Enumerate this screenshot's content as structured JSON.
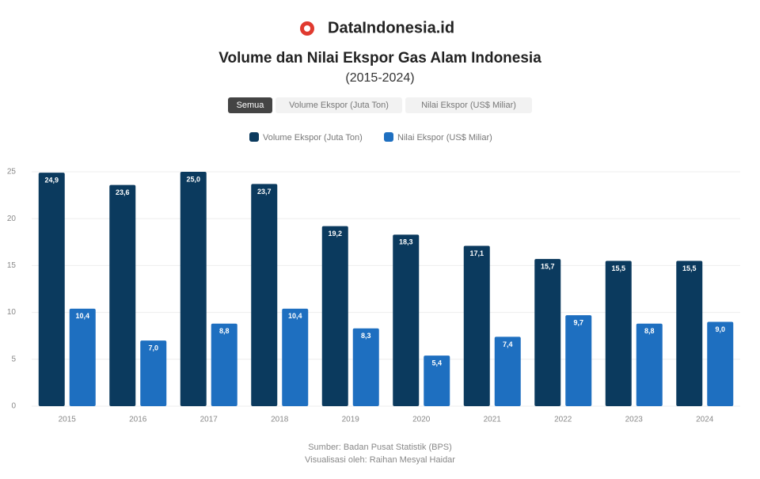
{
  "brand": "DataIndonesia.id",
  "buttons": [
    "Semua",
    "Volume Ekspor (Juta Ton)",
    "Nilai Ekspor (US$ Miliar)"
  ],
  "chart_data": {
    "type": "bar",
    "title": "Volume dan Nilai Ekspor Gas Alam Indonesia",
    "subtitle": "(2015-2024)",
    "categories": [
      "2015",
      "2016",
      "2017",
      "2018",
      "2019",
      "2020",
      "2021",
      "2022",
      "2023",
      "2024"
    ],
    "series": [
      {
        "name": "Volume Ekspor (Juta Ton)",
        "color": "#0b3a5e",
        "values": [
          24.9,
          23.6,
          25.0,
          23.7,
          19.2,
          18.3,
          17.1,
          15.7,
          15.5,
          15.5
        ],
        "value_labels": [
          "24,9",
          "23,6",
          "25,0",
          "23,7",
          "19,2",
          "18,3",
          "17,1",
          "15,7",
          "15,5",
          "15,5"
        ]
      },
      {
        "name": "Nilai Ekspor (US$ Miliar)",
        "color": "#1e6fc0",
        "values": [
          10.4,
          7.0,
          8.8,
          10.4,
          8.3,
          5.4,
          7.4,
          9.7,
          8.8,
          9.0
        ],
        "value_labels": [
          "10,4",
          "7,0",
          "8,8",
          "10,4",
          "8,3",
          "5,4",
          "7,4",
          "9,7",
          "8,8",
          "9,0"
        ]
      }
    ],
    "ylim": [
      0,
      25
    ],
    "yticks": [
      0,
      5,
      10,
      15,
      20,
      25
    ],
    "grid": true,
    "notes": [
      "Sumber: Badan Pusat Statistik (BPS)",
      "Visualisasi oleh: Raihan Mesyal Haidar"
    ]
  }
}
